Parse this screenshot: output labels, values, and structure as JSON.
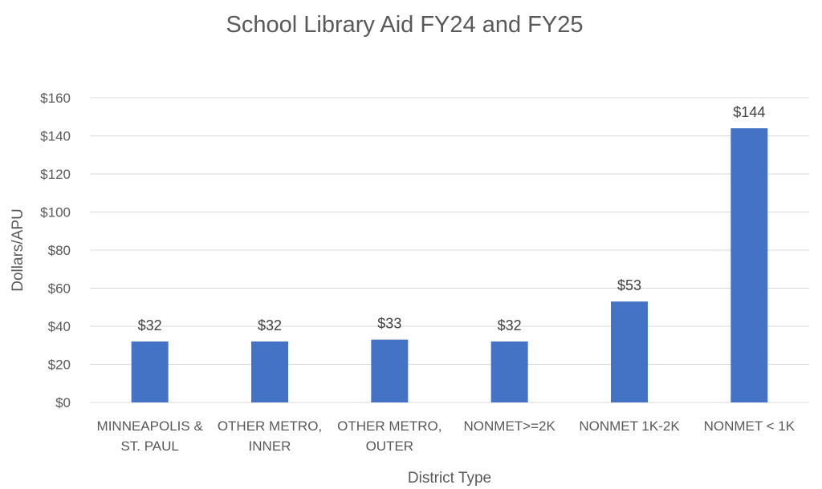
{
  "chart_data": {
    "type": "bar",
    "title": "School Library Aid FY24 and FY25",
    "xlabel": "District Type",
    "ylabel": "Dollars/APU",
    "categories": [
      [
        "MINNEAPOLIS &",
        "ST. PAUL"
      ],
      [
        "OTHER METRO,",
        "INNER"
      ],
      [
        "OTHER METRO,",
        "OUTER"
      ],
      [
        "NONMET>=2K"
      ],
      [
        "NONMET 1K-2K"
      ],
      [
        "NONMET < 1K"
      ]
    ],
    "values": [
      32,
      32,
      33,
      32,
      53,
      144
    ],
    "data_labels": [
      "$32",
      "$32",
      "$33",
      "$32",
      "$53",
      "$144"
    ],
    "yticks": [
      "$0",
      "$20",
      "$40",
      "$60",
      "$80",
      "$100",
      "$120",
      "$140",
      "$160"
    ],
    "ylim": [
      0,
      160
    ],
    "grid": true,
    "legend": "none",
    "bar_color": "#4472c4"
  }
}
